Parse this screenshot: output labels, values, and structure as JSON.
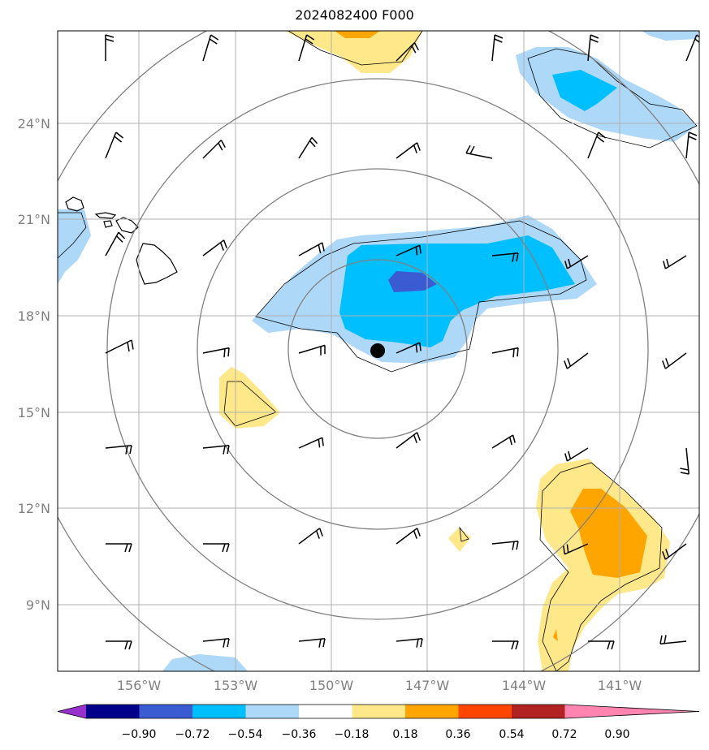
{
  "title": "2024082400 F000",
  "lat_labels": [
    "24°N",
    "21°N",
    "18°N",
    "15°N",
    "12°N",
    "9°N"
  ],
  "lon_labels": [
    "156°W",
    "153°W",
    "150°W",
    "147°W",
    "144°W",
    "141°W"
  ],
  "colorbar": {
    "ticks": [
      "−0.90",
      "−0.72",
      "−0.54",
      "−0.36",
      "−0.18",
      "0.18",
      "0.36",
      "0.54",
      "0.72",
      "0.90"
    ],
    "colors": [
      "#9932cc",
      "#00008b",
      "#3b5bd3",
      "#00bfff",
      "#add8f7",
      "#ffffff",
      "#ffe88a",
      "#ffa500",
      "#ff4500",
      "#b22222",
      "#ff85b0"
    ]
  },
  "map": {
    "range_rings": 4,
    "storm_center": {
      "lat": 16.9,
      "lon": -148.6
    },
    "colors": {
      "light_blue": "#add8f7",
      "deep_sky": "#00bfff",
      "royal_blue": "#3b5bd3",
      "light_yellow": "#ffe88a",
      "orange": "#ffa500",
      "grid": "#b0b0b0",
      "ring": "#808080"
    }
  }
}
